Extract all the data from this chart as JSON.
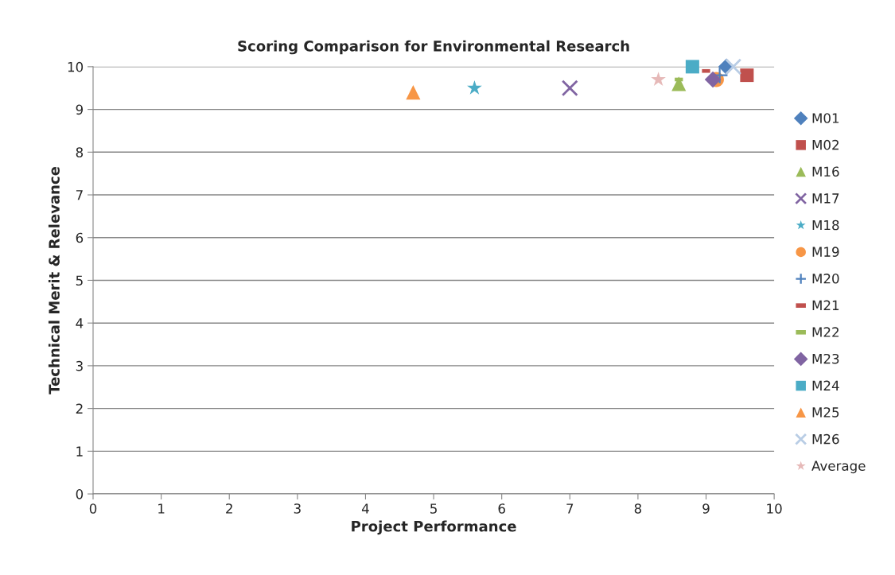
{
  "chart_data": {
    "type": "scatter",
    "title": "Scoring Comparison for Environmental Research",
    "xlabel": "Project Performance",
    "ylabel": "Technical Merit & Relevance",
    "xlim": [
      0,
      10
    ],
    "xticks": [
      0,
      1,
      2,
      3,
      4,
      5,
      6,
      7,
      8,
      9,
      10
    ],
    "ylim": [
      0,
      10
    ],
    "yticks": [
      0,
      1,
      2,
      3,
      4,
      5,
      6,
      7,
      8,
      9,
      10
    ],
    "grid": "y",
    "legend": "right",
    "series": [
      {
        "name": "M01",
        "color": "#4f81bd",
        "marker": "diamond",
        "x": [
          9.3
        ],
        "values": [
          10
        ]
      },
      {
        "name": "M02",
        "color": "#c0504d",
        "marker": "square",
        "x": [
          9.6
        ],
        "values": [
          9.8
        ]
      },
      {
        "name": "M16",
        "color": "#9bbb59",
        "marker": "triangle",
        "x": [
          8.6
        ],
        "values": [
          9.6
        ]
      },
      {
        "name": "M17",
        "color": "#8064a2",
        "marker": "cross",
        "x": [
          7.0
        ],
        "values": [
          9.5
        ]
      },
      {
        "name": "M18",
        "color": "#4bacc6",
        "marker": "star",
        "x": [
          5.6
        ],
        "values": [
          9.5
        ]
      },
      {
        "name": "M19",
        "color": "#f79646",
        "marker": "circle",
        "x": [
          9.15
        ],
        "values": [
          9.7
        ]
      },
      {
        "name": "M20",
        "color": "#4f81bd",
        "marker": "plus",
        "x": [
          9.2
        ],
        "values": [
          9.8
        ]
      },
      {
        "name": "M21",
        "color": "#c0504d",
        "x": [
          9.0
        ],
        "values": [
          9.9
        ]
      },
      {
        "name": "M22",
        "color": "#9bbb59",
        "x": [
          8.6
        ],
        "values": [
          9.7
        ]
      },
      {
        "name": "M23",
        "color": "#8064a2",
        "marker": "diamond",
        "x": [
          9.1
        ],
        "values": [
          9.7
        ]
      },
      {
        "name": "M24",
        "color": "#4bacc6",
        "marker": "square",
        "x": [
          8.8
        ],
        "values": [
          10
        ]
      },
      {
        "name": "M25",
        "color": "#f79646",
        "marker": "triangle",
        "x": [
          4.7
        ],
        "values": [
          9.4
        ]
      },
      {
        "name": "M26",
        "color": "#b9cde5",
        "marker": "cross",
        "x": [
          9.4
        ],
        "values": [
          10
        ]
      },
      {
        "name": "Average",
        "color": "#e6b9b8",
        "marker": "star",
        "x": [
          8.3
        ],
        "values": [
          9.7
        ]
      }
    ]
  }
}
